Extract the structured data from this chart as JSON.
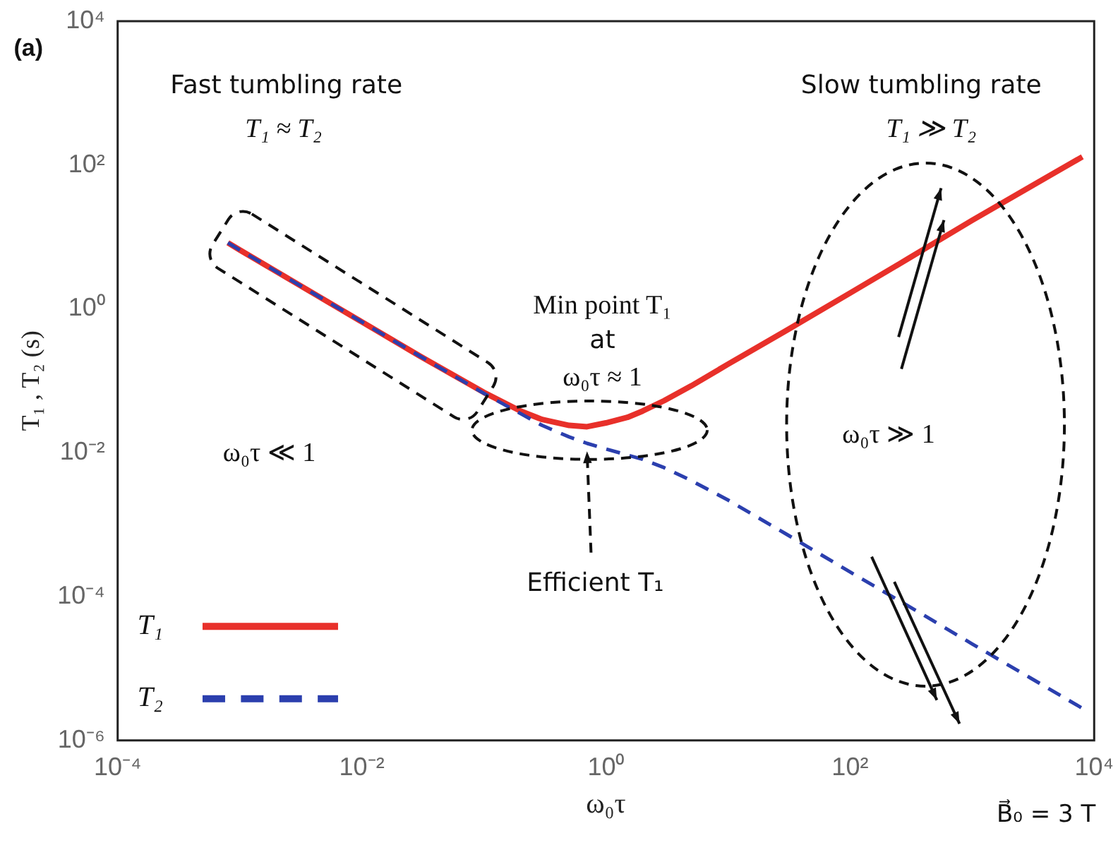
{
  "chart_data": {
    "type": "line",
    "xlabel": "ω₀τ",
    "ylabel": "T₁ , T₂ (s)",
    "x": [
      0.0008,
      0.001,
      0.003,
      0.01,
      0.03,
      0.1,
      0.2,
      0.3,
      0.5,
      0.7,
      1,
      1.5,
      2,
      3,
      5,
      10,
      30,
      100,
      300,
      1000,
      3000,
      8000
    ],
    "series": [
      {
        "name": "T₁",
        "color": "#e8302a",
        "line_style": "solid",
        "values": [
          8.3,
          6.6,
          2.2,
          0.66,
          0.22,
          0.069,
          0.038,
          0.029,
          0.024,
          0.023,
          0.026,
          0.031,
          0.038,
          0.053,
          0.085,
          0.17,
          0.5,
          1.66,
          5,
          17,
          50,
          130
        ]
      },
      {
        "name": "T₂",
        "color": "#2b3fae",
        "line_style": "dashed",
        "values": [
          8.3,
          6.6,
          2.2,
          0.66,
          0.22,
          0.067,
          0.035,
          0.024,
          0.0166,
          0.0135,
          0.0113,
          0.0093,
          0.0081,
          0.0062,
          0.0041,
          0.0022,
          0.00074,
          0.00022,
          7.4e-05,
          2.2e-05,
          7.4e-06,
          2.8e-06
        ]
      }
    ],
    "log": "xy",
    "xlim": [
      0.0001,
      10000
    ],
    "ylim": [
      1e-06,
      10000
    ],
    "xticks": [
      {
        "value": 0.0001,
        "label": "10⁻⁴"
      },
      {
        "value": 0.01,
        "label": "10⁻²"
      },
      {
        "value": 1,
        "label": "10⁰"
      },
      {
        "value": 100,
        "label": "10²"
      },
      {
        "value": 10000,
        "label": "10⁴"
      }
    ],
    "yticks": [
      {
        "value": 1e-06,
        "label": "10⁻⁶"
      },
      {
        "value": 0.0001,
        "label": "10⁻⁴"
      },
      {
        "value": 0.01,
        "label": "10⁻²"
      },
      {
        "value": 1,
        "label": "10⁰"
      },
      {
        "value": 100,
        "label": "10²"
      },
      {
        "value": 10000,
        "label": "10⁴"
      }
    ],
    "grid": false,
    "legend": "bottom left",
    "marker": "none",
    "annotations": [
      "(a)",
      "Fast tumbling rate",
      "T₁ ≈ T₂",
      "Slow tumbling rate",
      "T₁ ≫ T₂",
      "Min point T₁",
      "at",
      "ω₀τ ≈ 1",
      "ω₀τ ≪ 1",
      "ω₀τ ≫ 1",
      {
        "text": "Efficient T₁",
        "x": 0.7,
        "y": 0.012
      },
      "B⃗₀ = 3 T"
    ]
  }
}
